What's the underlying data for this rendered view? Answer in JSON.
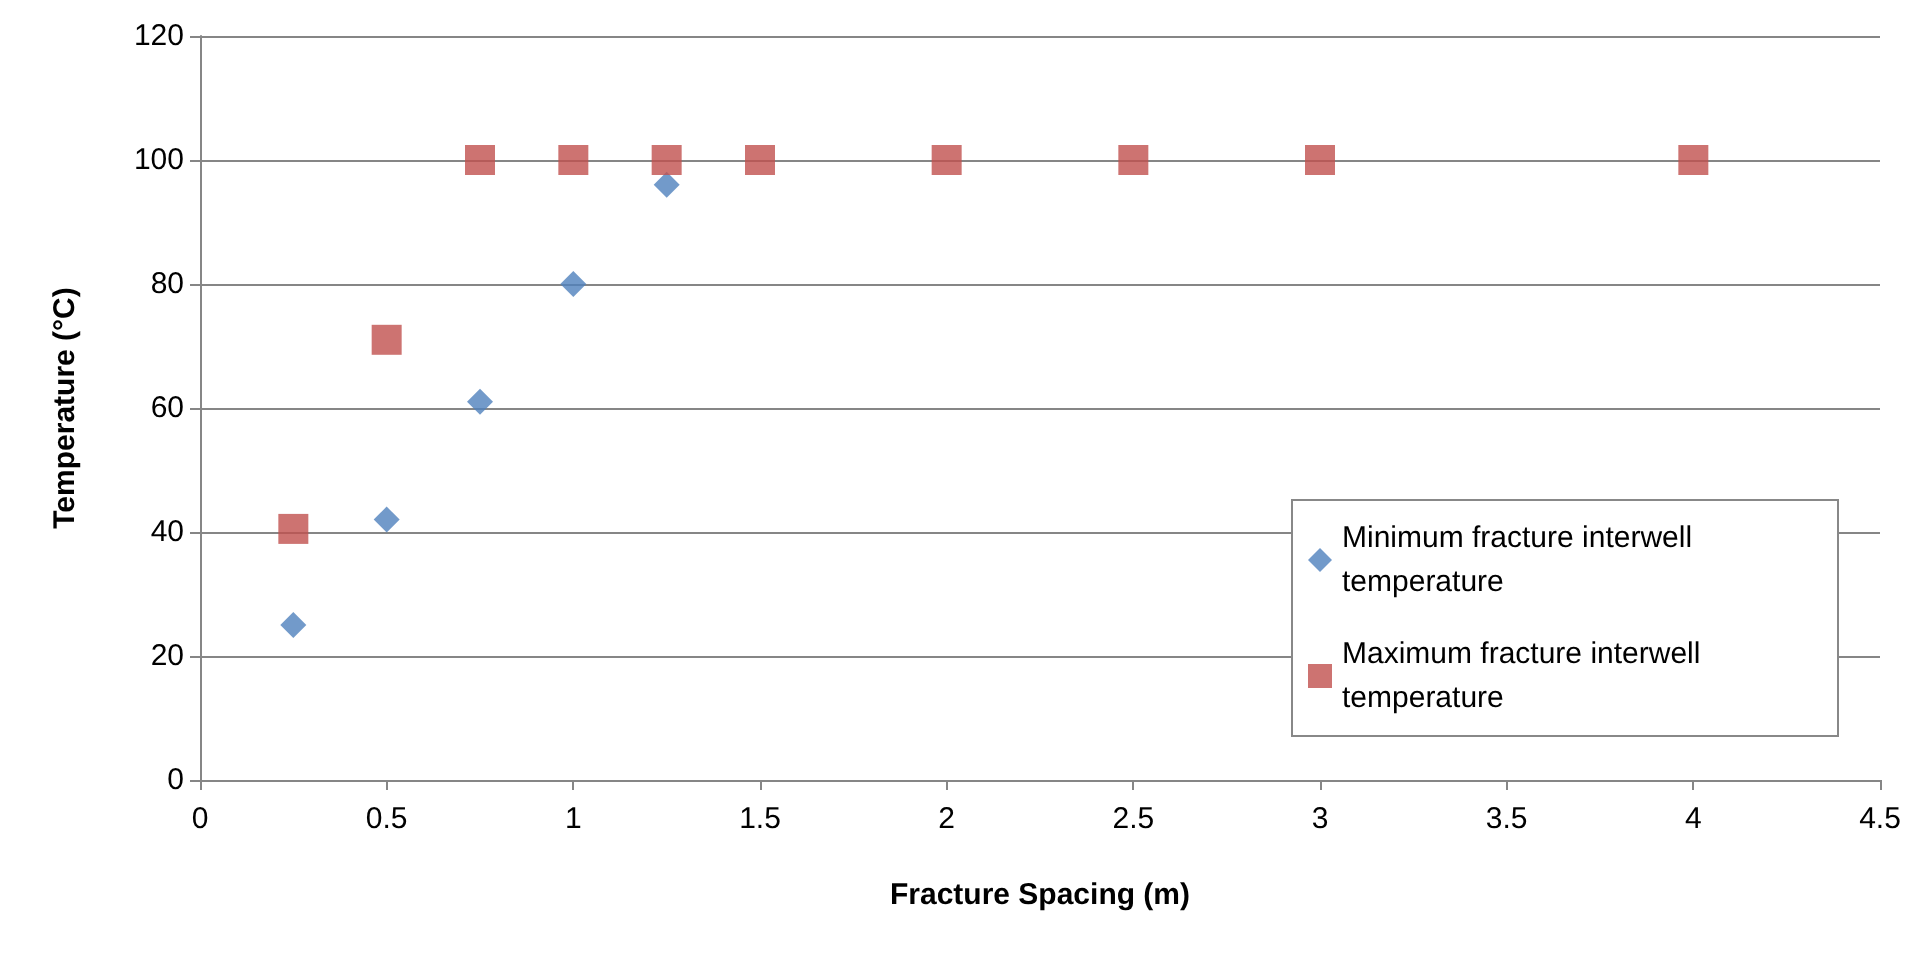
{
  "chart_data": {
    "type": "scatter",
    "xlabel": "Fracture Spacing (m)",
    "ylabel": "Temperature (°C)",
    "xlim": [
      0,
      4.5
    ],
    "xticks": [
      0,
      0.5,
      1,
      1.5,
      2,
      2.5,
      3,
      3.5,
      4,
      4.5
    ],
    "ylim": [
      0,
      120
    ],
    "yticks": [
      0,
      20,
      40,
      60,
      80,
      100,
      120
    ],
    "grid": "y",
    "legend": "right",
    "series": [
      {
        "name": "Minimum fracture interwell temperature",
        "color": "#4f81bd",
        "marker": "diamond",
        "x": [
          0.25,
          0.5,
          0.75,
          1,
          1.25
        ],
        "values": [
          25,
          42,
          61,
          80,
          96
        ]
      },
      {
        "name": "Maximum fracture interwell temperature",
        "color": "#c0504d",
        "marker": "square",
        "x": [
          0.25,
          0.5,
          0.75,
          1,
          1.25,
          1.5,
          2,
          2.5,
          3,
          4
        ],
        "values": [
          40.5,
          71,
          100,
          100,
          100,
          100,
          100,
          100,
          100,
          100
        ]
      }
    ]
  }
}
